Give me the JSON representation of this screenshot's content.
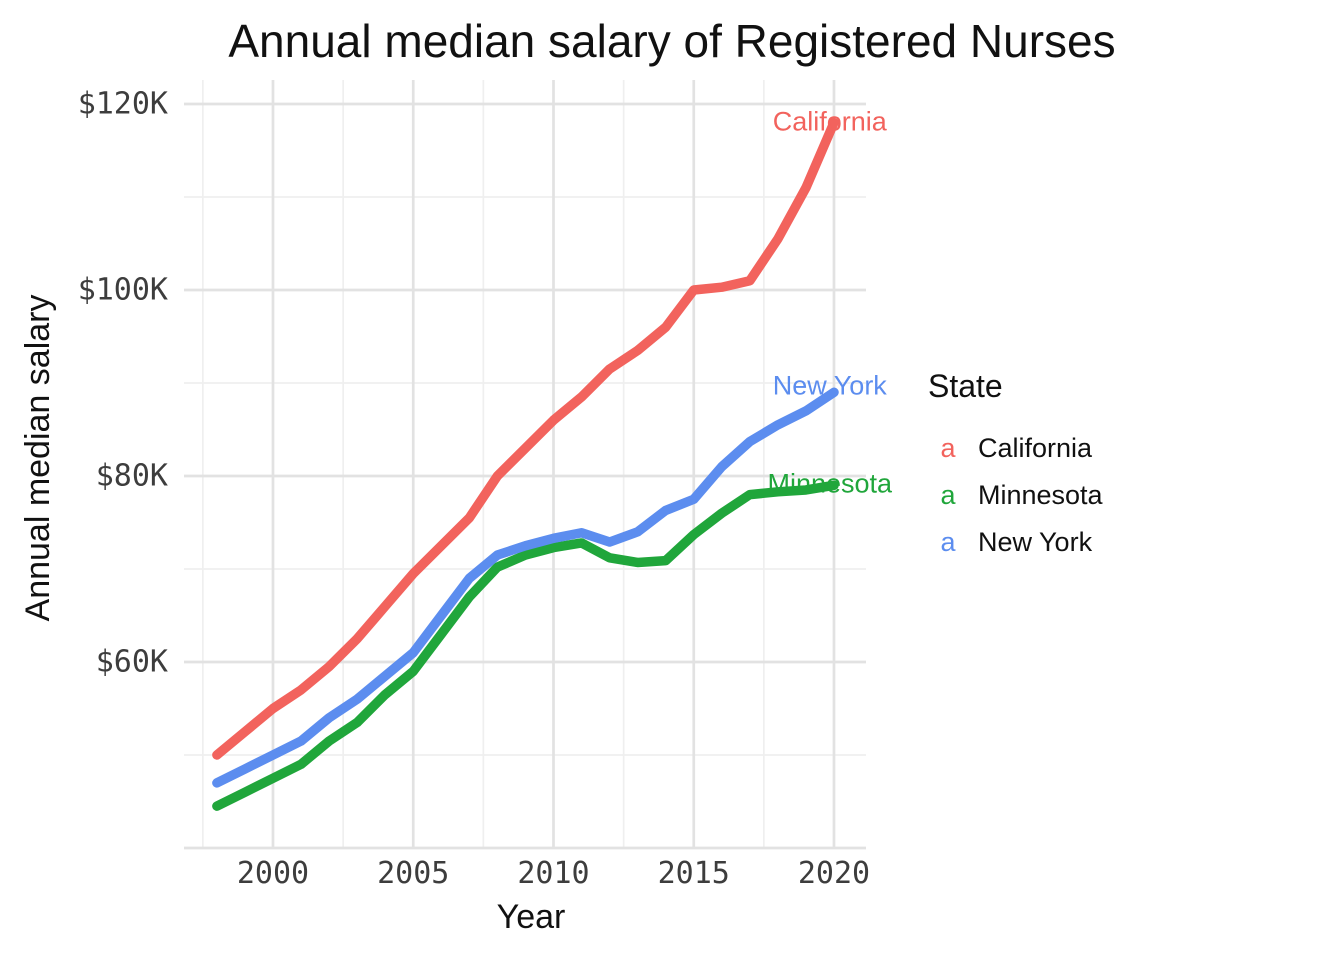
{
  "chart_data": {
    "type": "line",
    "title": "Annual median salary of Registered Nurses",
    "xlabel": "Year",
    "ylabel": "Annual median salary",
    "x": [
      1998,
      1999,
      2000,
      2001,
      2002,
      2003,
      2004,
      2005,
      2006,
      2007,
      2008,
      2009,
      2010,
      2011,
      2012,
      2013,
      2014,
      2015,
      2016,
      2017,
      2018,
      2019,
      2020
    ],
    "series": [
      {
        "name": "California",
        "color": "#F2635D",
        "unit": "$K",
        "values": [
          50,
          52.5,
          55,
          57,
          59.5,
          62.5,
          66,
          69.5,
          72.5,
          75.5,
          80,
          83,
          86,
          88.5,
          91.5,
          93.5,
          96,
          100,
          100.3,
          101,
          105.5,
          111,
          118
        ]
      },
      {
        "name": "Minnesota",
        "color": "#20A63B",
        "unit": "$K",
        "values": [
          44.5,
          46,
          47.5,
          49,
          51.5,
          53.5,
          56.5,
          59,
          63,
          67,
          70.2,
          71.5,
          72.3,
          72.8,
          71.2,
          70.7,
          70.9,
          73.7,
          76,
          78,
          78.3,
          78.5,
          79
        ]
      },
      {
        "name": "New York",
        "color": "#5C8DEF",
        "unit": "$K",
        "values": [
          47,
          48.5,
          50,
          51.5,
          54,
          56,
          58.5,
          61,
          65,
          69,
          71.5,
          72.5,
          73.3,
          73.9,
          72.9,
          74,
          76.3,
          77.5,
          81,
          83.7,
          85.5,
          87,
          89
        ]
      }
    ],
    "x_axis": {
      "title": "Year",
      "tick_values": [
        2000,
        2005,
        2010,
        2015,
        2020
      ],
      "tick_labels": [
        "2000",
        "2005",
        "2010",
        "2015",
        "2020"
      ],
      "grid_minor": [
        1997.5,
        2002.5,
        2007.5,
        2012.5,
        2017.5
      ]
    },
    "y_axis": {
      "title": "Annual median salary",
      "tick_values": [
        60,
        80,
        100,
        120
      ],
      "tick_labels": [
        "$60K",
        "$80K",
        "$100K",
        "$120K"
      ],
      "grid_major": [
        40,
        60,
        80,
        100,
        120
      ],
      "grid_minor": [
        50,
        70,
        90,
        110
      ]
    },
    "xlim": [
      1997.25,
      2021.1
    ],
    "ylim": [
      40,
      122.6
    ],
    "grid": true,
    "legend": {
      "title": "State",
      "position": "right",
      "key_glyph": "a",
      "entries": [
        "California",
        "Minnesota",
        "New York"
      ]
    },
    "annotations": [
      {
        "text": "California",
        "year": 2019.85,
        "value": 118.1,
        "series": "California"
      },
      {
        "text": "New York",
        "year": 2019.85,
        "value": 89.7,
        "series": "New York"
      },
      {
        "text": "Minnesota",
        "year": 2019.85,
        "value": 79.1,
        "series": "Minnesota"
      }
    ],
    "palette": {
      "grid_major": "#E2E2E2",
      "grid_minor": "#EFEFEF",
      "tick_text": "#3d3d3d",
      "title_text": "#111111",
      "background": "#ffffff"
    }
  }
}
